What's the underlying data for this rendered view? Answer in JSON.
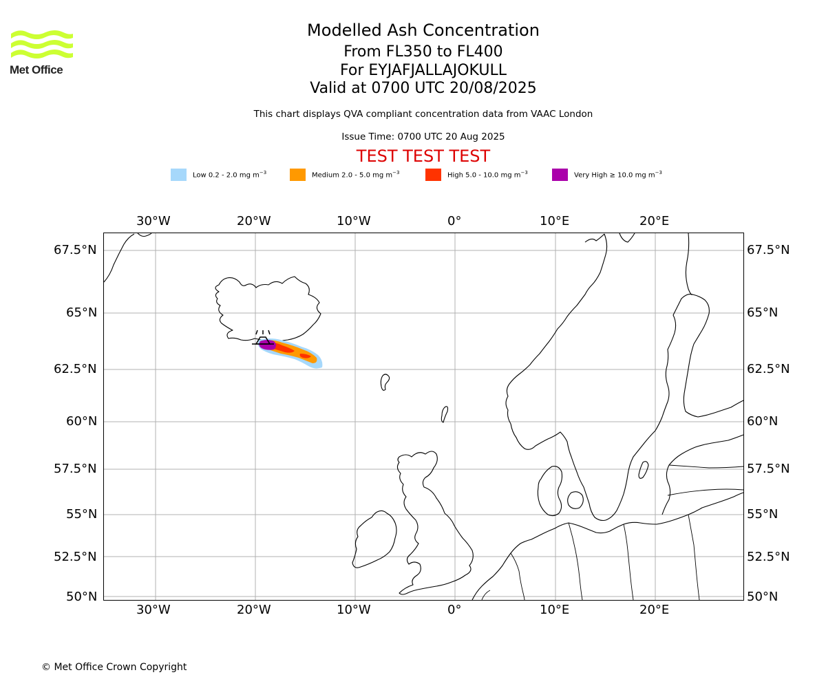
{
  "header": {
    "logo_text": "Met Office",
    "title": "Modelled Ash Concentration",
    "levels": "From FL350 to FL400",
    "volcano": "For EYJAFJALLAJOKULL",
    "valid": "Valid at 0700 UTC 20/08/2025",
    "qva_note": "This chart displays QVA compliant concentration data from VAAC London",
    "issue_time": "Issue Time: 0700 UTC 20 Aug 2025",
    "test_banner": "TEST TEST TEST"
  },
  "legend": [
    {
      "label": "Low 0.2 - 2.0 mg m",
      "unit_exp": "−3",
      "color": "#a6d8fb"
    },
    {
      "label": "Medium 2.0 - 5.0 mg m",
      "unit_exp": "−3",
      "color": "#ff9900"
    },
    {
      "label": "High 5.0 - 10.0 mg m",
      "unit_exp": "−3",
      "color": "#ff3300"
    },
    {
      "label": "Very High  ≥  10.0 mg m",
      "unit_exp": "−3",
      "color": "#aa00aa"
    }
  ],
  "map": {
    "longitude_labels": [
      "30°W",
      "20°W",
      "10°W",
      "0°",
      "10°E",
      "20°E"
    ],
    "latitude_labels": [
      "67.5°N",
      "65°N",
      "62.5°N",
      "60°N",
      "57.5°N",
      "55°N",
      "52.5°N",
      "50°N"
    ],
    "lon_range": [
      -35.0,
      28.0
    ],
    "lat_range": [
      50,
      68
    ],
    "volcano_symbol": "volcano-icon",
    "coast_color": "#000000",
    "grid_color": "#b0b0b0"
  },
  "footer": {
    "copyright": "© Met Office Crown Copyright"
  }
}
